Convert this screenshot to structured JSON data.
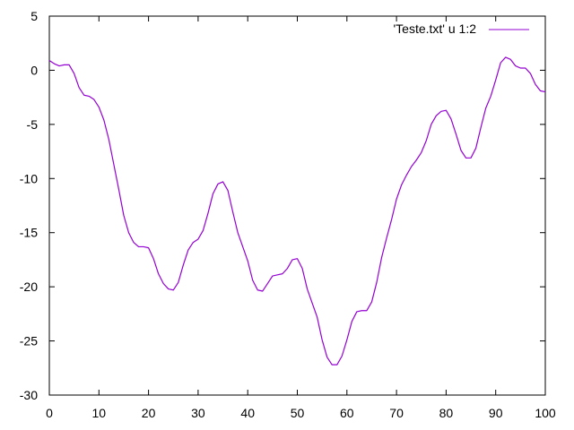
{
  "chart_data": {
    "type": "line",
    "title": "",
    "xlabel": "",
    "ylabel": "",
    "xlim": [
      0,
      100
    ],
    "ylim": [
      -30,
      5
    ],
    "x_ticks": [
      0,
      10,
      20,
      30,
      40,
      50,
      60,
      70,
      80,
      90,
      100
    ],
    "y_ticks": [
      5,
      0,
      -5,
      -10,
      -15,
      -20,
      -25,
      -30
    ],
    "grid": false,
    "legend_position": "top-right",
    "series": [
      {
        "name": "'Teste.txt' u 1:2",
        "color": "#9400d3",
        "points": [
          [
            0,
            0.9
          ],
          [
            1,
            0.6
          ],
          [
            2,
            0.4
          ],
          [
            3,
            0.5
          ],
          [
            4,
            0.5
          ],
          [
            5,
            -0.3
          ],
          [
            6,
            -1.6
          ],
          [
            7,
            -2.3
          ],
          [
            8,
            -2.4
          ],
          [
            9,
            -2.7
          ],
          [
            10,
            -3.4
          ],
          [
            11,
            -4.6
          ],
          [
            12,
            -6.4
          ],
          [
            13,
            -8.7
          ],
          [
            14,
            -11.0
          ],
          [
            15,
            -13.4
          ],
          [
            16,
            -15.0
          ],
          [
            17,
            -15.9
          ],
          [
            18,
            -16.3
          ],
          [
            19,
            -16.3
          ],
          [
            20,
            -16.4
          ],
          [
            21,
            -17.4
          ],
          [
            22,
            -18.8
          ],
          [
            23,
            -19.7
          ],
          [
            24,
            -20.2
          ],
          [
            25,
            -20.3
          ],
          [
            26,
            -19.6
          ],
          [
            27,
            -18.0
          ],
          [
            28,
            -16.6
          ],
          [
            29,
            -15.9
          ],
          [
            30,
            -15.6
          ],
          [
            31,
            -14.8
          ],
          [
            32,
            -13.2
          ],
          [
            33,
            -11.4
          ],
          [
            34,
            -10.5
          ],
          [
            35,
            -10.3
          ],
          [
            36,
            -11.1
          ],
          [
            37,
            -13.1
          ],
          [
            38,
            -15.0
          ],
          [
            39,
            -16.3
          ],
          [
            40,
            -17.6
          ],
          [
            41,
            -19.4
          ],
          [
            42,
            -20.3
          ],
          [
            43,
            -20.4
          ],
          [
            44,
            -19.7
          ],
          [
            45,
            -19.0
          ],
          [
            46,
            -18.9
          ],
          [
            47,
            -18.8
          ],
          [
            48,
            -18.3
          ],
          [
            49,
            -17.5
          ],
          [
            50,
            -17.4
          ],
          [
            51,
            -18.3
          ],
          [
            52,
            -20.2
          ],
          [
            53,
            -21.5
          ],
          [
            54,
            -22.8
          ],
          [
            55,
            -24.9
          ],
          [
            56,
            -26.5
          ],
          [
            57,
            -27.2
          ],
          [
            58,
            -27.2
          ],
          [
            59,
            -26.4
          ],
          [
            60,
            -24.9
          ],
          [
            61,
            -23.2
          ],
          [
            62,
            -22.3
          ],
          [
            63,
            -22.2
          ],
          [
            64,
            -22.2
          ],
          [
            65,
            -21.4
          ],
          [
            66,
            -19.6
          ],
          [
            67,
            -17.3
          ],
          [
            68,
            -15.5
          ],
          [
            69,
            -13.8
          ],
          [
            70,
            -11.9
          ],
          [
            71,
            -10.6
          ],
          [
            72,
            -9.7
          ],
          [
            73,
            -8.9
          ],
          [
            74,
            -8.3
          ],
          [
            75,
            -7.6
          ],
          [
            76,
            -6.5
          ],
          [
            77,
            -5.0
          ],
          [
            78,
            -4.2
          ],
          [
            79,
            -3.8
          ],
          [
            80,
            -3.7
          ],
          [
            81,
            -4.5
          ],
          [
            82,
            -5.9
          ],
          [
            83,
            -7.4
          ],
          [
            84,
            -8.1
          ],
          [
            85,
            -8.1
          ],
          [
            86,
            -7.2
          ],
          [
            87,
            -5.3
          ],
          [
            88,
            -3.5
          ],
          [
            89,
            -2.4
          ],
          [
            90,
            -0.9
          ],
          [
            91,
            0.7
          ],
          [
            92,
            1.2
          ],
          [
            93,
            1.0
          ],
          [
            94,
            0.4
          ],
          [
            95,
            0.2
          ],
          [
            96,
            0.2
          ],
          [
            97,
            -0.3
          ],
          [
            98,
            -1.3
          ],
          [
            99,
            -1.9
          ],
          [
            100,
            -2.0
          ]
        ]
      }
    ]
  }
}
